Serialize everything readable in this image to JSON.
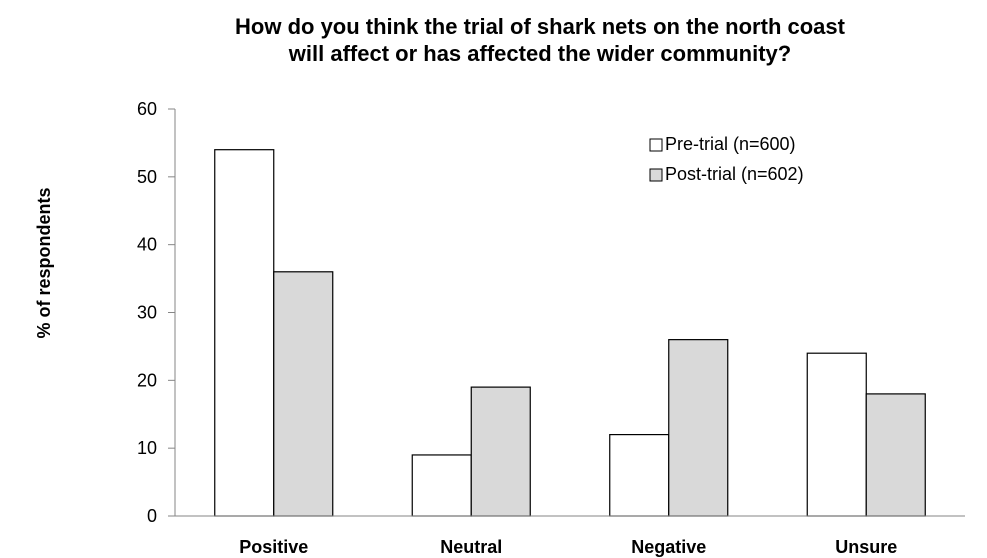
{
  "chart_data": {
    "type": "bar",
    "title_lines": [
      "How do you think the trial of shark nets on the north coast",
      "will affect or has affected the wider community?"
    ],
    "xlabel": "",
    "ylabel": "% of respondents",
    "categories": [
      "Positive",
      "Neutral",
      "Negative",
      "Unsure"
    ],
    "series": [
      {
        "name": "Pre-trial (n=600)",
        "values": [
          54,
          9,
          12,
          24
        ],
        "color": "#ffffff"
      },
      {
        "name": "Post-trial (n=602)",
        "values": [
          36,
          19,
          26,
          18
        ],
        "color": "#d9d9d9"
      }
    ],
    "ylim": [
      0,
      60
    ],
    "yticks": [
      "0",
      "10",
      "20",
      "30",
      "40",
      "50",
      "60"
    ],
    "grid": false,
    "legend_position": "top-right",
    "bar_edge_color": "#000000"
  }
}
